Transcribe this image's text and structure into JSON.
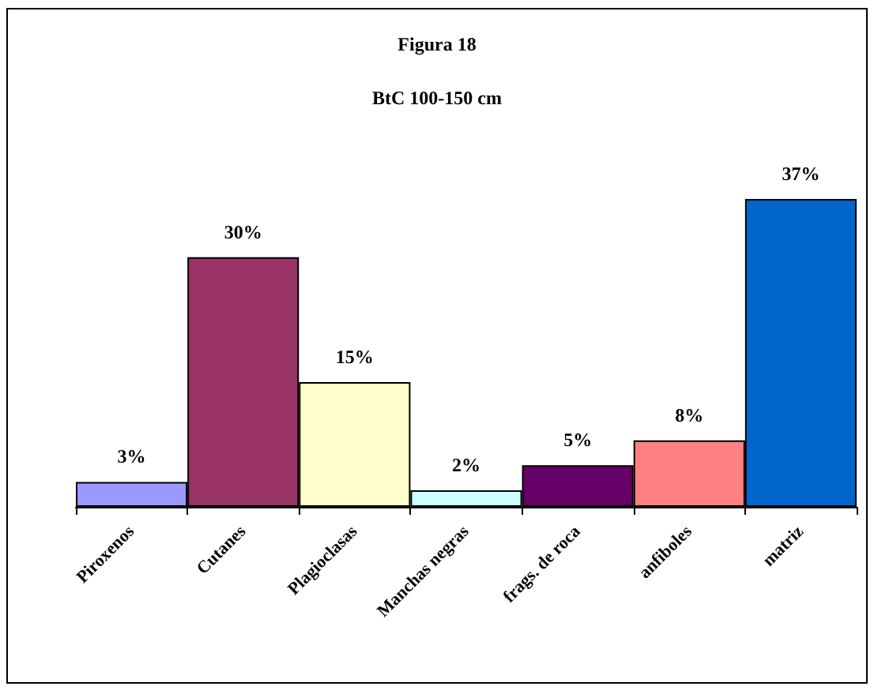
{
  "chart_data": {
    "type": "bar",
    "title": "Figura 18",
    "subtitle": "BtC 100-150 cm",
    "categories": [
      "Piroxenos",
      "Cutanes",
      "Plagioclasas",
      "Manchas negras",
      "frags. de roca",
      "anfiboles",
      "matriz"
    ],
    "values": [
      3,
      30,
      15,
      2,
      5,
      8,
      37
    ],
    "colors": [
      "#9999ff",
      "#993366",
      "#ffffcc",
      "#ccffff",
      "#660066",
      "#ff8080",
      "#0066cc"
    ],
    "value_labels": [
      "3%",
      "30%",
      "15%",
      "2%",
      "5%",
      "8%",
      "37%"
    ]
  }
}
